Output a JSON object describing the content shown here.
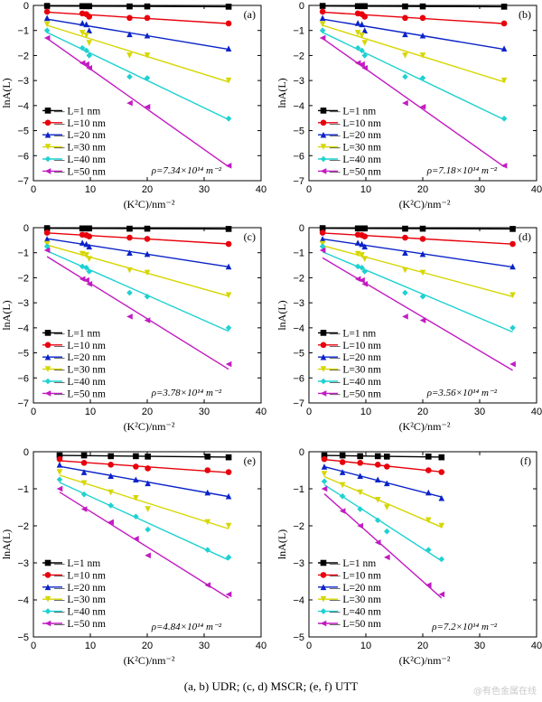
{
  "caption": "(a, b) UDR; (c, d) MSCR; (e, f) UTT",
  "watermark": "@有色金属在线",
  "legend_labels": [
    "L=1 nm",
    "L=10 nm",
    "L=20 nm",
    "L=30 nm",
    "L=40 nm",
    "L=50 nm"
  ],
  "series_colors": [
    "#000000",
    "#e8000b",
    "#0a23c8",
    "#d6d600",
    "#1fd1d1",
    "#c21ac2"
  ],
  "series_markers": [
    "square",
    "circle",
    "triangle-up",
    "triangle-down",
    "diamond",
    "triangle-left"
  ],
  "chart_data": [
    {
      "type": "scatter",
      "panel_label": "(a)",
      "xlabel": "(K²C)/nm⁻²",
      "ylabel": "lnA(L)",
      "xlim": [
        0,
        40
      ],
      "ylim": [
        -7,
        0
      ],
      "xticks": [
        0,
        10,
        20,
        30,
        40
      ],
      "yticks": [
        0,
        -1,
        -2,
        -3,
        -4,
        -5,
        -6,
        -7
      ],
      "rho_label": "ρ=7.34×10¹⁴ m⁻²",
      "x": [
        2.4,
        8.6,
        9.3,
        9.8,
        16.9,
        20.0,
        34.3
      ],
      "series": [
        {
          "name": "L=1 nm",
          "y": [
            -0.02,
            -0.03,
            -0.03,
            -0.03,
            -0.04,
            -0.04,
            -0.05
          ]
        },
        {
          "name": "L=10 nm",
          "y": [
            -0.25,
            -0.32,
            -0.35,
            -0.45,
            -0.5,
            -0.5,
            -0.72
          ]
        },
        {
          "name": "L=20 nm",
          "y": [
            -0.5,
            -0.7,
            -0.75,
            -1.0,
            -1.15,
            -1.2,
            -1.72
          ]
        },
        {
          "name": "L=30 nm",
          "y": [
            -0.75,
            -1.1,
            -1.2,
            -1.5,
            -2.0,
            -2.0,
            -3.0
          ]
        },
        {
          "name": "L=40 nm",
          "y": [
            -1.0,
            -1.7,
            -1.8,
            -2.0,
            -2.85,
            -2.9,
            -4.52
          ]
        },
        {
          "name": "L=50 nm",
          "y": [
            -1.3,
            -2.3,
            -2.35,
            -2.5,
            -3.9,
            -4.05,
            -6.4
          ]
        }
      ]
    },
    {
      "type": "scatter",
      "panel_label": "(b)",
      "xlabel": "(K²C)/nm⁻²",
      "ylabel": "lnA(L)",
      "xlim": [
        0,
        40
      ],
      "ylim": [
        -7,
        0
      ],
      "xticks": [
        0,
        10,
        20,
        30,
        40
      ],
      "yticks": [
        0,
        -1,
        -2,
        -3,
        -4,
        -5,
        -6,
        -7
      ],
      "rho_label": "ρ=7.18×10¹⁴ m⁻²",
      "x": [
        2.4,
        8.6,
        9.3,
        9.8,
        16.9,
        20.0,
        34.3
      ],
      "series": [
        {
          "name": "L=1 nm",
          "y": [
            -0.02,
            -0.03,
            -0.03,
            -0.03,
            -0.04,
            -0.04,
            -0.05
          ]
        },
        {
          "name": "L=10 nm",
          "y": [
            -0.25,
            -0.32,
            -0.35,
            -0.45,
            -0.5,
            -0.5,
            -0.72
          ]
        },
        {
          "name": "L=20 nm",
          "y": [
            -0.5,
            -0.7,
            -0.75,
            -1.0,
            -1.15,
            -1.2,
            -1.72
          ]
        },
        {
          "name": "L=30 nm",
          "y": [
            -0.75,
            -1.1,
            -1.2,
            -1.5,
            -2.0,
            -2.0,
            -3.0
          ]
        },
        {
          "name": "L=40 nm",
          "y": [
            -1.0,
            -1.7,
            -1.8,
            -2.0,
            -2.85,
            -2.9,
            -4.52
          ]
        },
        {
          "name": "L=50 nm",
          "y": [
            -1.3,
            -2.3,
            -2.35,
            -2.5,
            -3.9,
            -4.05,
            -6.4
          ]
        }
      ]
    },
    {
      "type": "scatter",
      "panel_label": "(c)",
      "xlabel": "(K²C)/nm⁻²",
      "ylabel": "lnA(L)",
      "xlim": [
        0,
        40
      ],
      "ylim": [
        -7,
        0
      ],
      "xticks": [
        0,
        10,
        20,
        30,
        40
      ],
      "yticks": [
        0,
        -1,
        -2,
        -3,
        -4,
        -5,
        -6,
        -7
      ],
      "rho_label": "ρ=3.78×10¹⁴ m⁻²",
      "x": [
        2.4,
        8.6,
        9.3,
        9.8,
        16.9,
        20.0,
        34.3
      ],
      "series": [
        {
          "name": "L=1 nm",
          "y": [
            -0.02,
            -0.03,
            -0.03,
            -0.03,
            -0.04,
            -0.04,
            -0.05
          ]
        },
        {
          "name": "L=10 nm",
          "y": [
            -0.2,
            -0.28,
            -0.3,
            -0.35,
            -0.4,
            -0.45,
            -0.65
          ]
        },
        {
          "name": "L=20 nm",
          "y": [
            -0.45,
            -0.6,
            -0.65,
            -0.75,
            -1.0,
            -1.05,
            -1.55
          ]
        },
        {
          "name": "L=30 nm",
          "y": [
            -0.65,
            -1.05,
            -1.1,
            -1.25,
            -1.7,
            -1.8,
            -2.7
          ]
        },
        {
          "name": "L=40 nm",
          "y": [
            -0.75,
            -1.55,
            -1.6,
            -1.75,
            -2.6,
            -2.75,
            -4.0
          ]
        },
        {
          "name": "L=50 nm",
          "y": [
            -0.9,
            -2.05,
            -2.1,
            -2.25,
            -3.55,
            -3.7,
            -5.45
          ]
        }
      ]
    },
    {
      "type": "scatter",
      "panel_label": "(d)",
      "xlabel": "(K²C)/nm⁻²",
      "ylabel": "lnA(L)",
      "xlim": [
        0,
        40
      ],
      "ylim": [
        -7,
        0
      ],
      "xticks": [
        0,
        10,
        20,
        30,
        40
      ],
      "yticks": [
        0,
        -1,
        -2,
        -3,
        -4,
        -5,
        -6,
        -7
      ],
      "rho_label": "ρ=3.56×10¹⁴ m⁻²",
      "x": [
        2.4,
        8.6,
        9.3,
        9.8,
        16.9,
        20.0,
        35.8
      ],
      "series": [
        {
          "name": "L=1 nm",
          "y": [
            -0.02,
            -0.03,
            -0.03,
            -0.03,
            -0.04,
            -0.04,
            -0.05
          ]
        },
        {
          "name": "L=10 nm",
          "y": [
            -0.2,
            -0.28,
            -0.3,
            -0.35,
            -0.4,
            -0.45,
            -0.65
          ]
        },
        {
          "name": "L=20 nm",
          "y": [
            -0.45,
            -0.6,
            -0.65,
            -0.75,
            -1.0,
            -1.05,
            -1.55
          ]
        },
        {
          "name": "L=30 nm",
          "y": [
            -0.65,
            -1.05,
            -1.1,
            -1.25,
            -1.7,
            -1.8,
            -2.7
          ]
        },
        {
          "name": "L=40 nm",
          "y": [
            -0.75,
            -1.55,
            -1.6,
            -1.75,
            -2.6,
            -2.75,
            -4.0
          ]
        },
        {
          "name": "L=50 nm",
          "y": [
            -0.9,
            -2.05,
            -2.1,
            -2.25,
            -3.55,
            -3.7,
            -5.45
          ]
        }
      ]
    },
    {
      "type": "scatter",
      "panel_label": "(e)",
      "xlabel": "(K²C)/nm⁻²",
      "ylabel": "lnA(L)",
      "xlim": [
        0,
        40
      ],
      "ylim": [
        -5,
        0
      ],
      "xticks": [
        0,
        10,
        20,
        30,
        40
      ],
      "yticks": [
        0,
        -1,
        -2,
        -3,
        -4,
        -5
      ],
      "rho_label": "ρ=4.84×10¹⁴ m⁻²",
      "x": [
        4.6,
        8.9,
        13.6,
        18.0,
        20.1,
        30.6,
        34.3
      ],
      "series": [
        {
          "name": "L=1 nm",
          "y": [
            -0.1,
            -0.1,
            -0.12,
            -0.12,
            -0.13,
            -0.13,
            -0.15
          ]
        },
        {
          "name": "L=10 nm",
          "y": [
            -0.2,
            -0.3,
            -0.35,
            -0.4,
            -0.45,
            -0.5,
            -0.55
          ]
        },
        {
          "name": "L=20 nm",
          "y": [
            -0.35,
            -0.55,
            -0.65,
            -0.75,
            -0.85,
            -1.1,
            -1.2
          ]
        },
        {
          "name": "L=30 nm",
          "y": [
            -0.55,
            -0.85,
            -1.1,
            -1.25,
            -1.55,
            -1.9,
            -2.0
          ]
        },
        {
          "name": "L=40 nm",
          "y": [
            -0.75,
            -1.15,
            -1.45,
            -1.75,
            -2.1,
            -2.65,
            -2.85
          ]
        },
        {
          "name": "L=50 nm",
          "y": [
            -1.0,
            -1.55,
            -1.9,
            -2.35,
            -2.8,
            -3.6,
            -3.85
          ]
        }
      ]
    },
    {
      "type": "scatter",
      "panel_label": "(f)",
      "xlabel": "(K²C)/nm⁻²",
      "ylabel": "lnA(L)",
      "xlim": [
        0,
        40
      ],
      "ylim": [
        -5,
        0
      ],
      "xticks": [
        0,
        10,
        20,
        30,
        40
      ],
      "yticks": [
        0,
        -1,
        -2,
        -3,
        -4,
        -5
      ],
      "rho_label": "ρ=7.2×10¹⁴ m⁻²",
      "x": [
        2.7,
        5.9,
        9.0,
        12.1,
        13.7,
        21.0,
        23.3
      ],
      "series": [
        {
          "name": "L=1 nm",
          "y": [
            -0.1,
            -0.1,
            -0.12,
            -0.12,
            -0.13,
            -0.13,
            -0.15
          ]
        },
        {
          "name": "L=10 nm",
          "y": [
            -0.2,
            -0.28,
            -0.3,
            -0.35,
            -0.4,
            -0.5,
            -0.55
          ]
        },
        {
          "name": "L=20 nm",
          "y": [
            -0.4,
            -0.55,
            -0.65,
            -0.75,
            -0.85,
            -1.1,
            -1.25
          ]
        },
        {
          "name": "L=30 nm",
          "y": [
            -0.6,
            -0.9,
            -1.1,
            -1.3,
            -1.5,
            -1.85,
            -2.0
          ]
        },
        {
          "name": "L=40 nm",
          "y": [
            -0.8,
            -1.2,
            -1.55,
            -1.85,
            -2.15,
            -2.65,
            -2.9
          ]
        },
        {
          "name": "L=50 nm",
          "y": [
            -1.0,
            -1.6,
            -2.0,
            -2.45,
            -2.85,
            -3.6,
            -3.85
          ]
        }
      ]
    }
  ]
}
